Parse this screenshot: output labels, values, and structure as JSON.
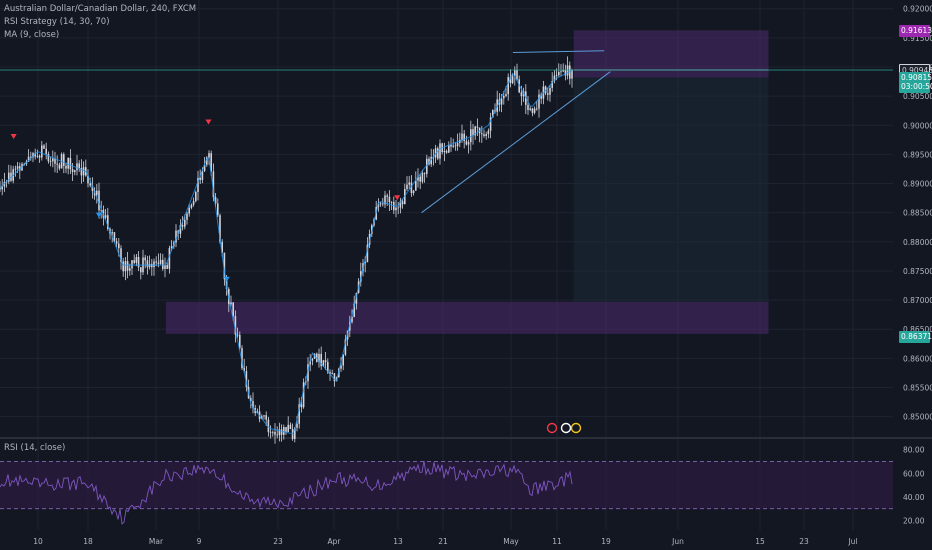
{
  "legend": {
    "symbol": "Australian Dollar/Canadian Dollar, 240, FXCM",
    "strategy": "RSI Strategy (14, 30, 70)",
    "ma": "MA (9, close)",
    "rsi": "RSI (14, close)"
  },
  "price_tags": [
    {
      "label": "0.91613",
      "value": 0.91613,
      "color": "#9c27b0"
    },
    {
      "label": "0.90948",
      "value": 0.90948,
      "color": "#1e222d"
    },
    {
      "label": "0.90815",
      "value": 0.90815,
      "color": "#26a69a"
    },
    {
      "label": "03:00:50",
      "value": 0.90655,
      "color": "#26a69a"
    },
    {
      "label": "0.86371",
      "value": 0.86371,
      "color": "#26a69a"
    }
  ],
  "colors": {
    "background": "#131722",
    "candle": "#d1d4dc",
    "ma_line": "#2196f3",
    "rsi_line": "#7e57c2",
    "zone": "#4a2a6e",
    "current_price_line": "#26a69a",
    "signal_long": "#2196f3",
    "signal_short": "#f23645"
  },
  "chart_data": [
    {
      "type": "candlestick",
      "title": "Australian Dollar/Canadian Dollar, 240, FXCM",
      "ylim": [
        0.8465,
        0.9215
      ],
      "y_ticks": [
        "0.92000",
        "0.91500",
        "0.91000",
        "0.90500",
        "0.90000",
        "0.89500",
        "0.89000",
        "0.88500",
        "0.88000",
        "0.87500",
        "0.87000",
        "0.86500",
        "0.86000",
        "0.85500",
        "0.85000"
      ],
      "x_ticks": [
        "10",
        "18",
        "Mar",
        "9",
        "23",
        "Apr",
        "13",
        "21",
        "May",
        "11",
        "19",
        "Jun",
        "15",
        "23",
        "Jul"
      ],
      "close_path_x": [
        "Feb 3",
        "Feb 10",
        "Feb 18",
        "Feb 24",
        "Mar 2",
        "Mar 9",
        "Mar 12",
        "Mar 16",
        "Mar 19",
        "Mar 23",
        "Mar 26",
        "Mar 30",
        "Apr 6",
        "Apr 9",
        "Apr 13",
        "Apr 16",
        "Apr 21",
        "Apr 24",
        "Apr 28",
        "May 1",
        "May 5",
        "May 8"
      ],
      "close_path_y": [
        0.8885,
        0.8955,
        0.892,
        0.876,
        0.876,
        0.895,
        0.872,
        0.852,
        0.848,
        0.847,
        0.861,
        0.856,
        0.887,
        0.886,
        0.892,
        0.896,
        0.898,
        0.9,
        0.909,
        0.903,
        0.908,
        0.9095
      ],
      "zones": [
        {
          "from": "Mar 2",
          "to": "Jun 9",
          "low": 0.8642,
          "high": 0.8697
        },
        {
          "from": "May 8",
          "to": "Jun 9",
          "low": 0.9082,
          "high": 0.9163
        }
      ],
      "lines": [
        {
          "name": "support-trendline",
          "from_x": "Apr 13",
          "from_y": 0.885,
          "to_x": "May 14",
          "to_y": 0.9092
        },
        {
          "name": "upper-line",
          "from_x": "Apr 28",
          "from_y": 0.9125,
          "to_x": "May 13",
          "to_y": 0.9128
        }
      ],
      "current_price": 0.90948
    },
    {
      "type": "line",
      "title": "RSI (14, close)",
      "ylim": [
        12,
        84
      ],
      "y_ticks": [
        "80.00",
        "60.00",
        "40.00",
        "20.00"
      ],
      "bands": [
        30,
        70
      ],
      "x": [
        "Feb 3",
        "Feb 10",
        "Feb 18",
        "Feb 24",
        "Mar 2",
        "Mar 9",
        "Mar 16",
        "Mar 23",
        "Mar 30",
        "Apr 6",
        "Apr 13",
        "Apr 21",
        "Apr 28",
        "May 1",
        "May 8"
      ],
      "values": [
        55,
        50,
        52,
        22,
        58,
        65,
        35,
        38,
        56,
        50,
        66,
        57,
        64,
        45,
        57
      ]
    }
  ]
}
